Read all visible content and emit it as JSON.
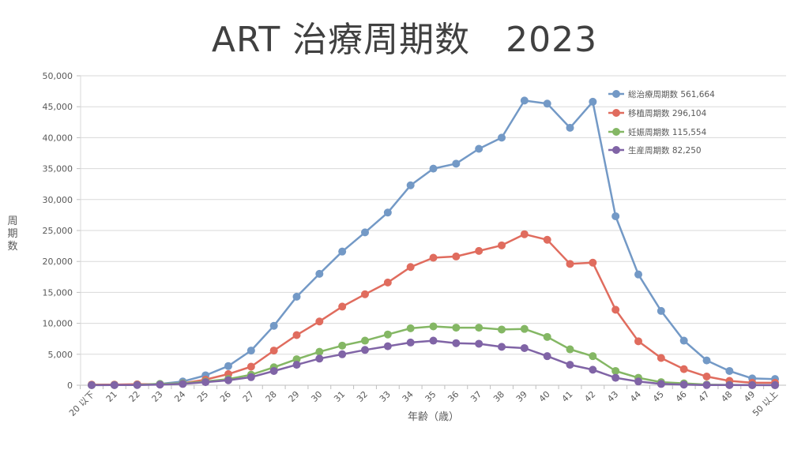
{
  "title": "ART 治療周期数　2023",
  "chart_data": {
    "type": "line",
    "title": "ART 治療周期数　2023",
    "xlabel": "年齢（歳）",
    "ylabel": "周期数",
    "ylim": [
      0,
      50000
    ],
    "yticks": [
      "0",
      "5,000",
      "10,000",
      "15,000",
      "20,000",
      "25,000",
      "30,000",
      "35,000",
      "40,000",
      "45,000",
      "50,000"
    ],
    "grid": true,
    "legend_position": "upper right (inside)",
    "categories": [
      "20 以下",
      "21",
      "22",
      "23",
      "24",
      "25",
      "26",
      "27",
      "28",
      "29",
      "30",
      "31",
      "32",
      "33",
      "34",
      "35",
      "36",
      "37",
      "38",
      "39",
      "40",
      "41",
      "42",
      "43",
      "44",
      "45",
      "46",
      "47",
      "48",
      "49",
      "50 以上"
    ],
    "series": [
      {
        "name": "総治療周期数 561,664",
        "color": "#7399c6",
        "values": [
          50,
          80,
          120,
          200,
          600,
          1600,
          3100,
          5600,
          9600,
          14300,
          18000,
          21600,
          24700,
          27900,
          32300,
          35000,
          35800,
          38200,
          40000,
          46000,
          45500,
          41600,
          45800,
          27300,
          17900,
          12000,
          7200,
          4000,
          2300,
          1100,
          1000
        ]
      },
      {
        "name": "移植周期数 296,104",
        "color": "#e06c5e",
        "values": [
          100,
          100,
          150,
          150,
          300,
          900,
          1800,
          3000,
          5600,
          8100,
          10300,
          12700,
          14700,
          16600,
          19100,
          20600,
          20800,
          21700,
          22600,
          24400,
          23500,
          19600,
          19800,
          12200,
          7100,
          4400,
          2600,
          1400,
          700,
          400,
          400
        ]
      },
      {
        "name": "妊娠周期数 115,554",
        "color": "#84b764",
        "values": [
          20,
          30,
          50,
          200,
          300,
          600,
          1000,
          1700,
          2900,
          4200,
          5400,
          6400,
          7200,
          8200,
          9200,
          9500,
          9300,
          9300,
          9000,
          9100,
          7800,
          5800,
          4700,
          2300,
          1200,
          500,
          300,
          100,
          50,
          20,
          10
        ]
      },
      {
        "name": "生産周期数 82,250",
        "color": "#8064a6",
        "values": [
          10,
          20,
          30,
          100,
          200,
          500,
          800,
          1300,
          2300,
          3300,
          4300,
          5000,
          5700,
          6300,
          6900,
          7200,
          6800,
          6700,
          6200,
          6000,
          4700,
          3300,
          2500,
          1200,
          600,
          200,
          100,
          30,
          20,
          10,
          10
        ]
      }
    ]
  },
  "legend": [
    {
      "label": "総治療周期数 561,664"
    },
    {
      "label": "移植周期数 296,104"
    },
    {
      "label": "妊娠周期数 115,554"
    },
    {
      "label": "生産周期数 82,250"
    }
  ]
}
